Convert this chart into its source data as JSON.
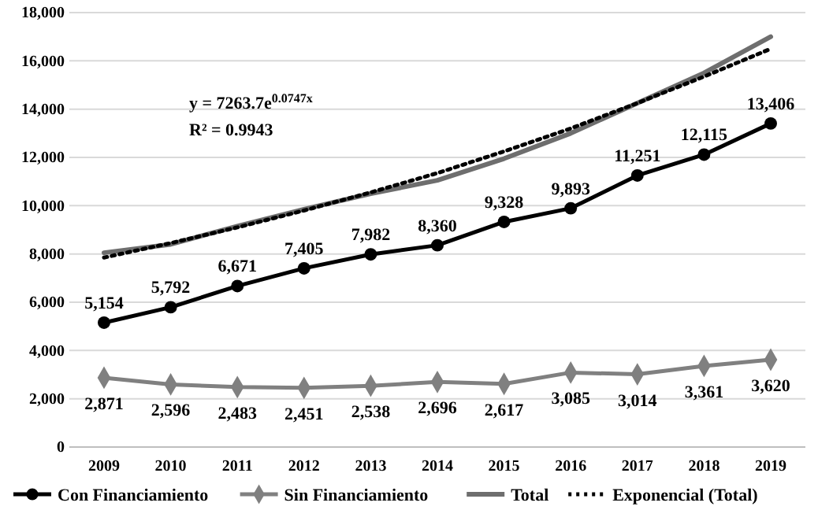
{
  "chart_data": {
    "type": "line",
    "categories": [
      "2009",
      "2010",
      "2011",
      "2012",
      "2013",
      "2014",
      "2015",
      "2016",
      "2017",
      "2018",
      "2019"
    ],
    "series": [
      {
        "name": "Con Financiamiento",
        "color": "#000000",
        "marker": "circle",
        "values": [
          5154,
          5792,
          6671,
          7405,
          7982,
          8360,
          9328,
          9893,
          11251,
          12115,
          13406
        ],
        "value_labels": [
          "5,154",
          "5,792",
          "6,671",
          "7,405",
          "7,982",
          "8,360",
          "9,328",
          "9,893",
          "11,251",
          "12,115",
          "13,406"
        ]
      },
      {
        "name": "Sin Financiamiento",
        "color": "#808080",
        "marker": "diamond",
        "values": [
          2871,
          2596,
          2483,
          2451,
          2538,
          2696,
          2617,
          3085,
          3014,
          3361,
          3620
        ],
        "value_labels": [
          "2,871",
          "2,596",
          "2,483",
          "2,451",
          "2,538",
          "2,696",
          "2,617",
          "3,085",
          "3,014",
          "3,361",
          "3,620"
        ]
      },
      {
        "name": "Total",
        "color": "#6e6e6e",
        "marker": "none",
        "values": [
          8050,
          8400,
          9150,
          9850,
          10500,
          11050,
          11950,
          13000,
          14250,
          15500,
          17000
        ]
      },
      {
        "name": "Exponencial (Total)",
        "color": "#000000",
        "marker": "none",
        "line_style": "dotted",
        "values": [
          7850,
          8450,
          9100,
          9800,
          10550,
          11350,
          12250,
          13200,
          14250,
          15350,
          16500
        ]
      }
    ],
    "ylim": [
      0,
      18000
    ],
    "yticks": [
      0,
      {
        "value": 2000,
        "label": "2,000"
      },
      {
        "value": 4000,
        "label": "4,000"
      },
      {
        "value": 6000,
        "label": "6,000"
      },
      {
        "value": 8000,
        "label": "8,000"
      },
      {
        "value": 10000,
        "label": "10,000"
      },
      {
        "value": 12000,
        "label": "12,000"
      },
      {
        "value": 14000,
        "label": "14,000"
      },
      {
        "value": 16000,
        "label": "16,000"
      },
      {
        "value": 18000,
        "label": "18,000"
      }
    ],
    "grid": "y",
    "legend": "bottom",
    "annotations": [
      "y = 7263.7e$^{0.0747x}$",
      "R² = 0.9943"
    ]
  }
}
